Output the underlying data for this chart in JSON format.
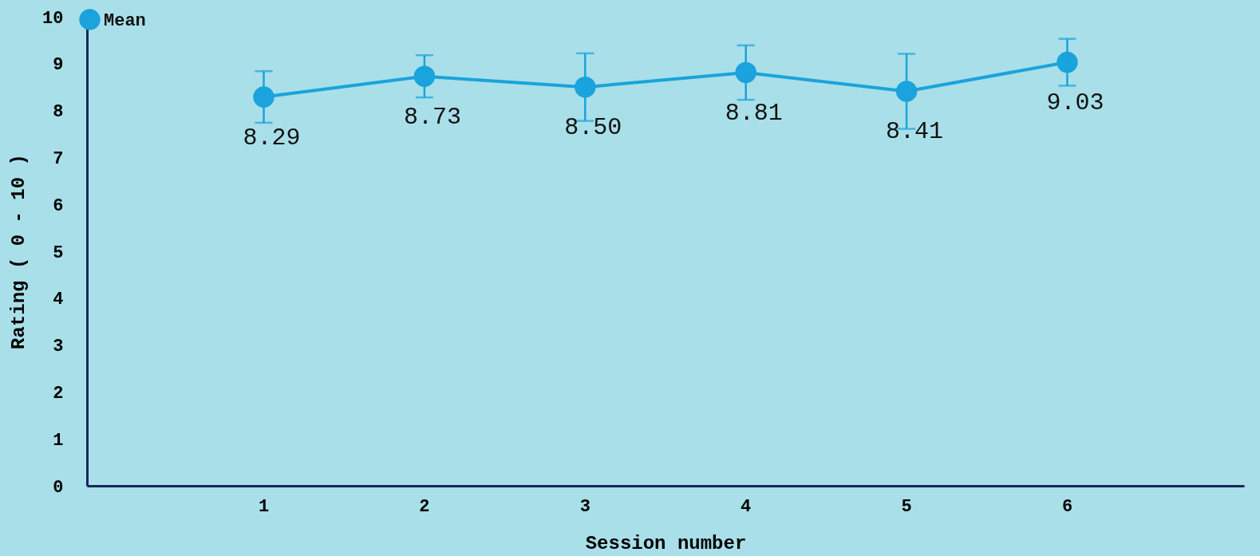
{
  "chart_data": {
    "type": "line",
    "xlabel": "Session number",
    "ylabel": "Rating ( 0 - 10 )",
    "categories": [
      "1",
      "2",
      "3",
      "4",
      "5",
      "6"
    ],
    "series": [
      {
        "name": "Mean",
        "color": "#1aa3dc",
        "values": [
          8.29,
          8.73,
          8.5,
          8.81,
          8.41,
          9.03
        ],
        "errors": [
          0.55,
          0.45,
          0.72,
          0.58,
          0.8,
          0.5
        ],
        "value_labels": [
          "8.29",
          "8.73",
          "8.50",
          "8.81",
          "8.41",
          "9.03"
        ]
      }
    ],
    "ylim": [
      0,
      10
    ],
    "yticks": [
      0,
      1,
      2,
      3,
      4,
      5,
      6,
      7,
      8,
      9,
      10
    ],
    "marker": "circle",
    "line_style": "solid",
    "legend": "top left",
    "grid": false
  }
}
